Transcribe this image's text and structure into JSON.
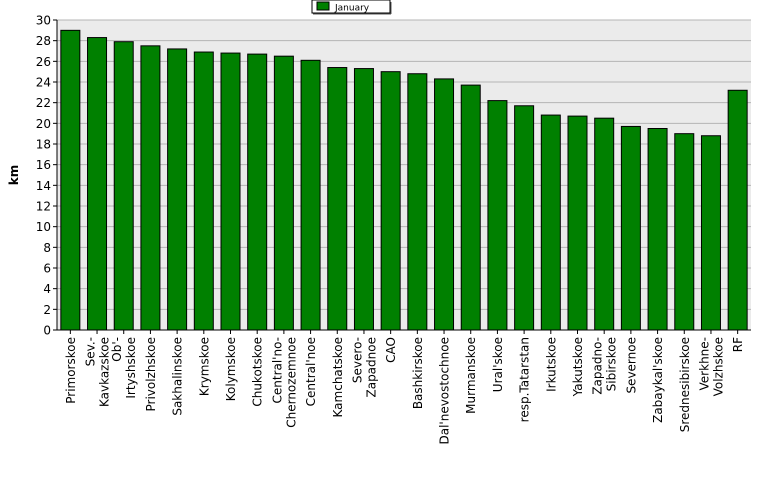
{
  "chart_data": {
    "type": "bar",
    "categories": [
      [
        "Primorskoe"
      ],
      [
        "Sev.-",
        "Kavkazskoe"
      ],
      [
        "Ob'-",
        "Irtyshskoe"
      ],
      [
        "Privolzhskoe"
      ],
      [
        "Sakhalinskoe"
      ],
      [
        "Krymskoe"
      ],
      [
        "Kolymskoe"
      ],
      [
        "Chukotskoe"
      ],
      [
        "Central'no-",
        "Chernozemnoe"
      ],
      [
        "Central'noe"
      ],
      [
        "Kamchatskoe"
      ],
      [
        "Severo-",
        "Zapadnoe"
      ],
      [
        "CAO"
      ],
      [
        "Bashkirskoe"
      ],
      [
        "Dal'nevostochnoe"
      ],
      [
        "Murmanskoe"
      ],
      [
        "Ural'skoe"
      ],
      [
        "resp.Tatarstan"
      ],
      [
        "Irkutskoe"
      ],
      [
        "Yakutskoe"
      ],
      [
        "Zapadno-",
        "Sibirskoe"
      ],
      [
        "Severnoe"
      ],
      [
        "Zabaykal'skoe"
      ],
      [
        "Srednesibirskoe"
      ],
      [
        "Verkhne-",
        "Volzhskoe"
      ],
      [
        "RF"
      ]
    ],
    "series": [
      {
        "name": "January",
        "values": [
          29.0,
          28.3,
          27.9,
          27.5,
          27.2,
          26.9,
          26.8,
          26.7,
          26.5,
          26.1,
          25.4,
          25.3,
          25.0,
          24.8,
          24.3,
          23.7,
          22.2,
          21.7,
          20.8,
          20.7,
          20.5,
          19.7,
          19.5,
          19.0,
          18.8,
          23.2
        ]
      }
    ],
    "ylabel": "km",
    "ylim": [
      0,
      30
    ],
    "yticks": [
      0,
      2,
      4,
      6,
      8,
      10,
      12,
      14,
      16,
      18,
      20,
      22,
      24,
      26,
      28,
      30
    ],
    "grid": true,
    "legend_position": "top-center",
    "colors": {
      "bar": "#008000",
      "plot_background": "#ebebeb",
      "grid": "#b4b4b4",
      "axis": "#000000"
    }
  }
}
